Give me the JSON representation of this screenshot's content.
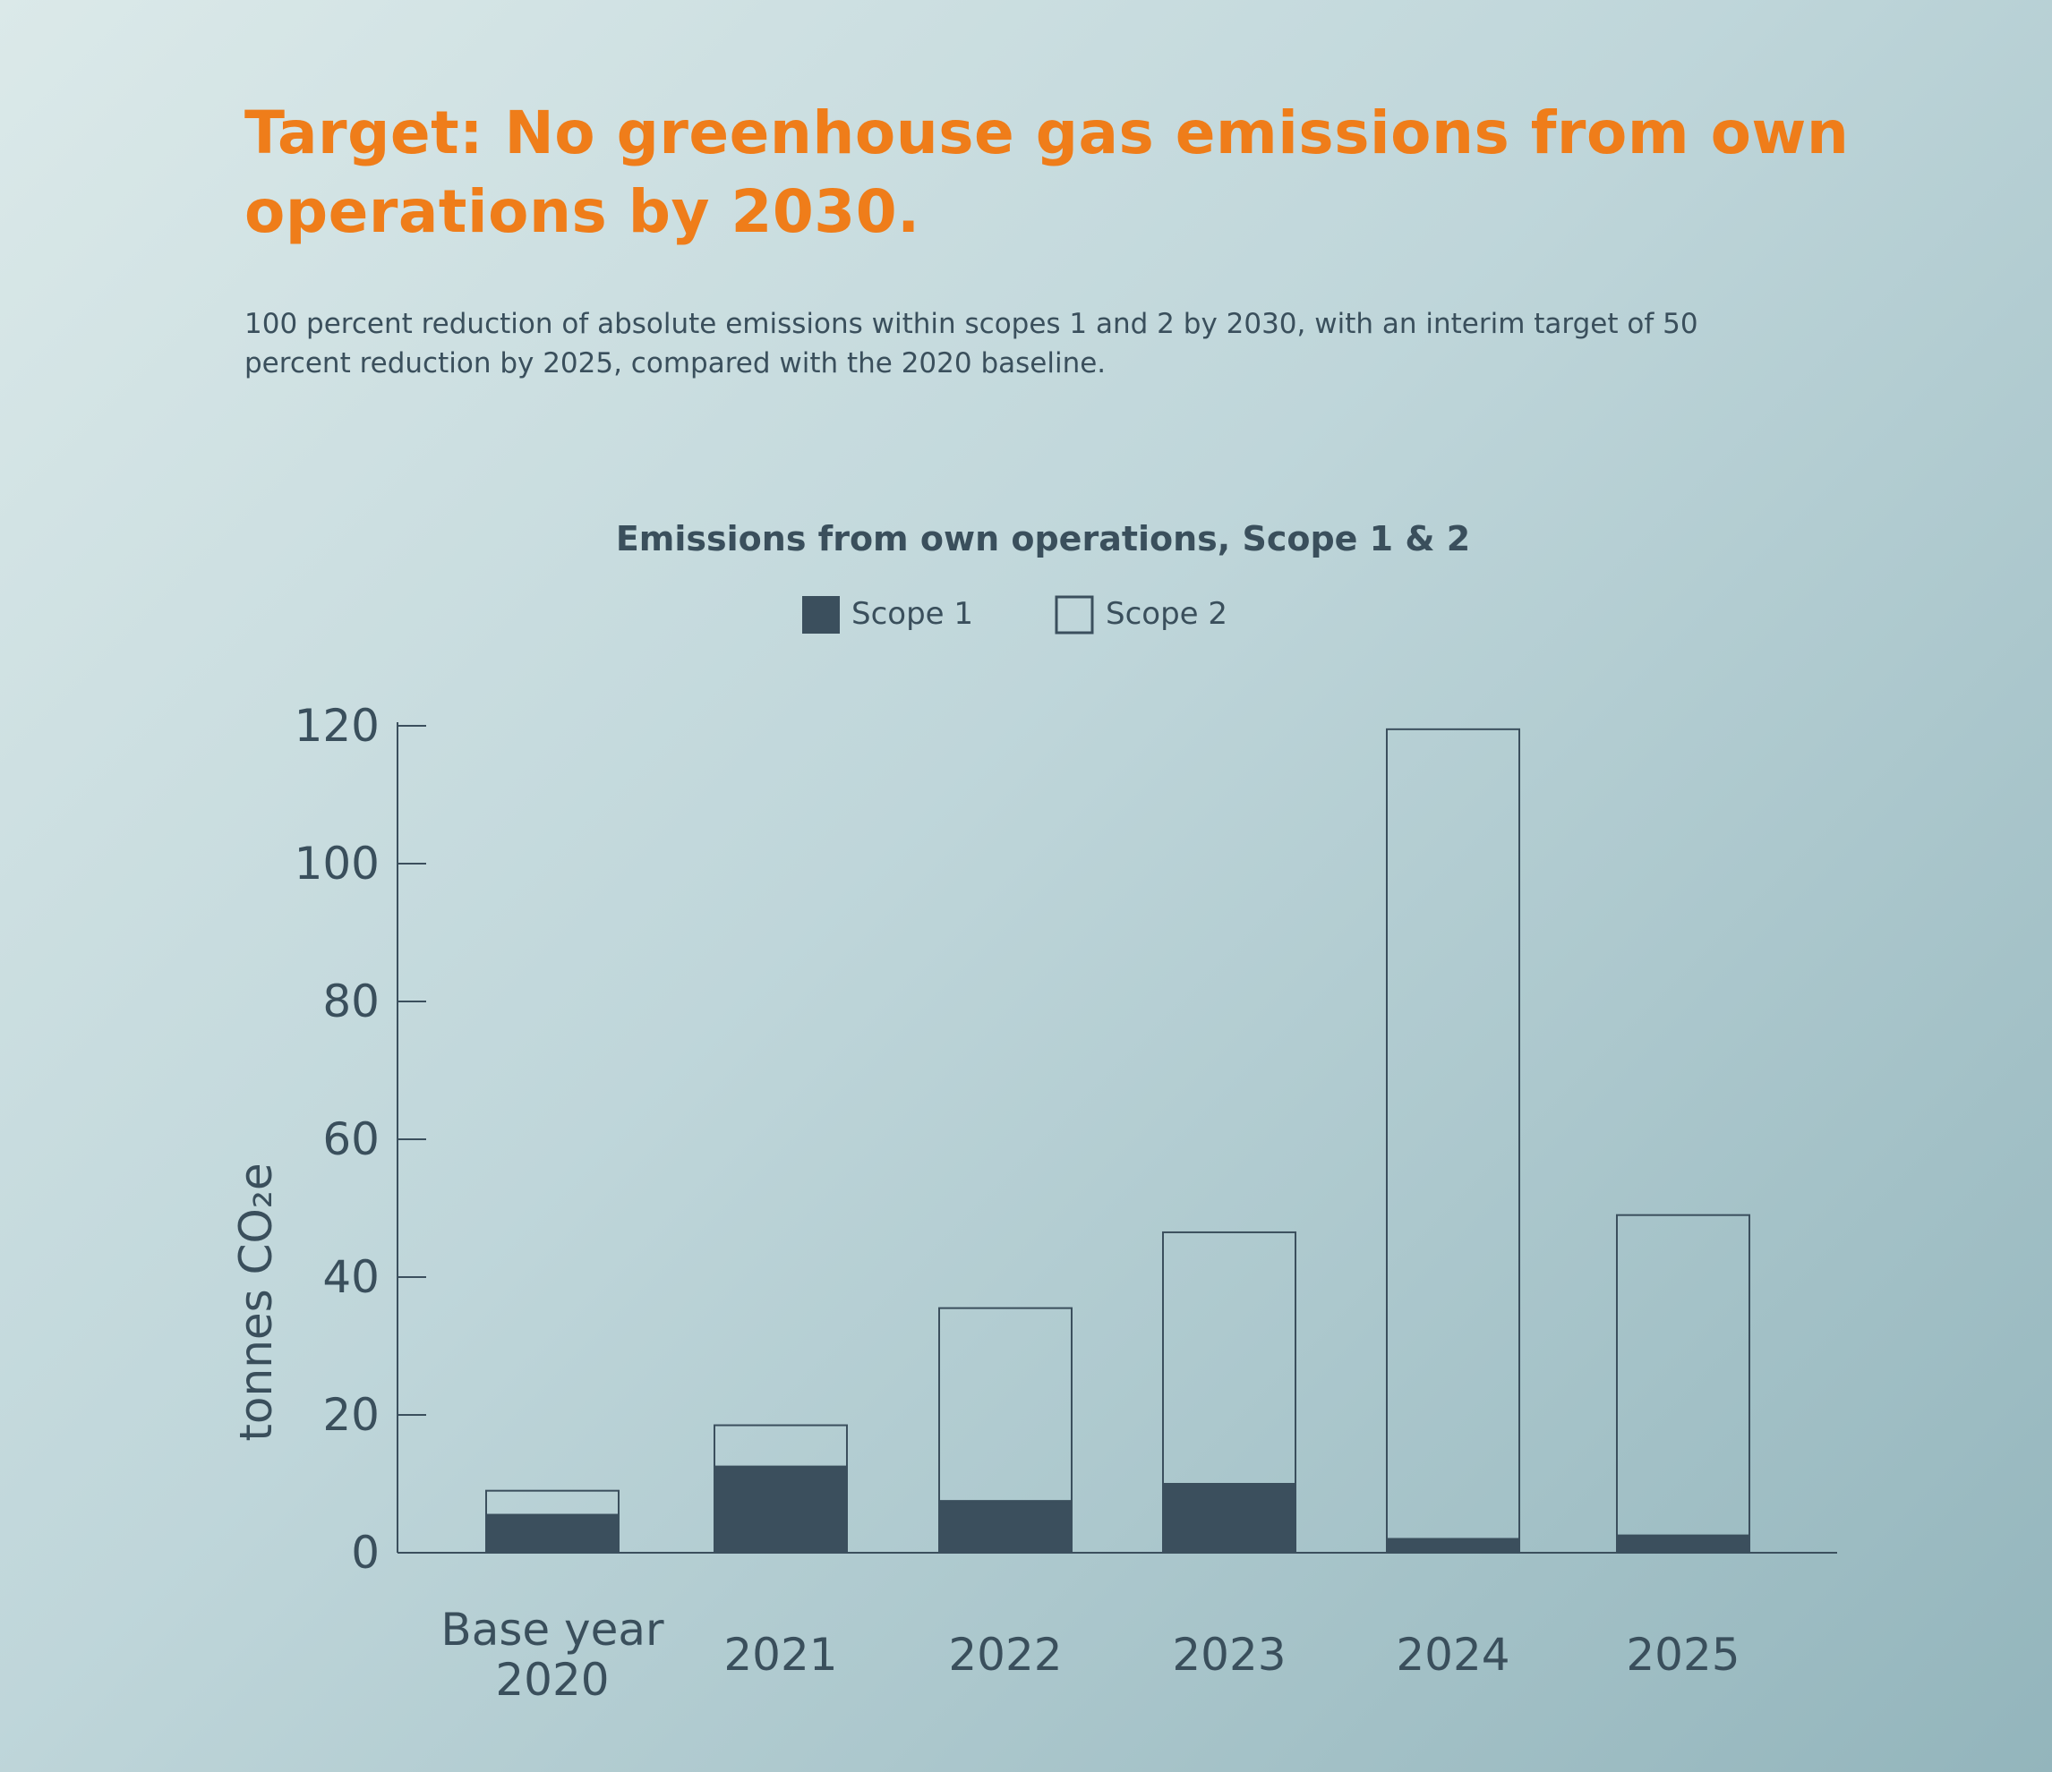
{
  "header": {
    "title": "Target: No greenhouse gas emissions from own operations by 2030.",
    "subtitle": "100 percent reduction of absolute emissions within scopes 1 and 2 by 2030, with an interim target of 50 percent reduction by 2025, compared with the 2020 baseline."
  },
  "colors": {
    "accent": "#ef7d1a",
    "text": "#3a4f5c",
    "scope1_fill": "#3b4f5d",
    "scope2_stroke": "#3b4f5d"
  },
  "chart_data": {
    "type": "bar",
    "stacked": true,
    "title": "Emissions from own operations, Scope 1 & 2",
    "ylabel": "tonnes CO₂e",
    "xlabel": "",
    "ylim": [
      0,
      120
    ],
    "yticks": [
      "0",
      "20",
      "40",
      "60",
      "80",
      "100",
      "120"
    ],
    "categories": [
      [
        "Base year",
        "2020"
      ],
      [
        "2021"
      ],
      [
        "2022"
      ],
      [
        "2023"
      ],
      [
        "2024"
      ],
      [
        "2025"
      ]
    ],
    "legend_position": "top-center",
    "grid": false,
    "series": [
      {
        "name": "Scope 1",
        "style": "filled",
        "values": [
          5.5,
          12.5,
          7.5,
          10,
          2,
          2.5
        ]
      },
      {
        "name": "Scope 2",
        "style": "outline",
        "values": [
          3.5,
          6,
          28,
          36.5,
          117.5,
          46.5
        ]
      }
    ]
  }
}
